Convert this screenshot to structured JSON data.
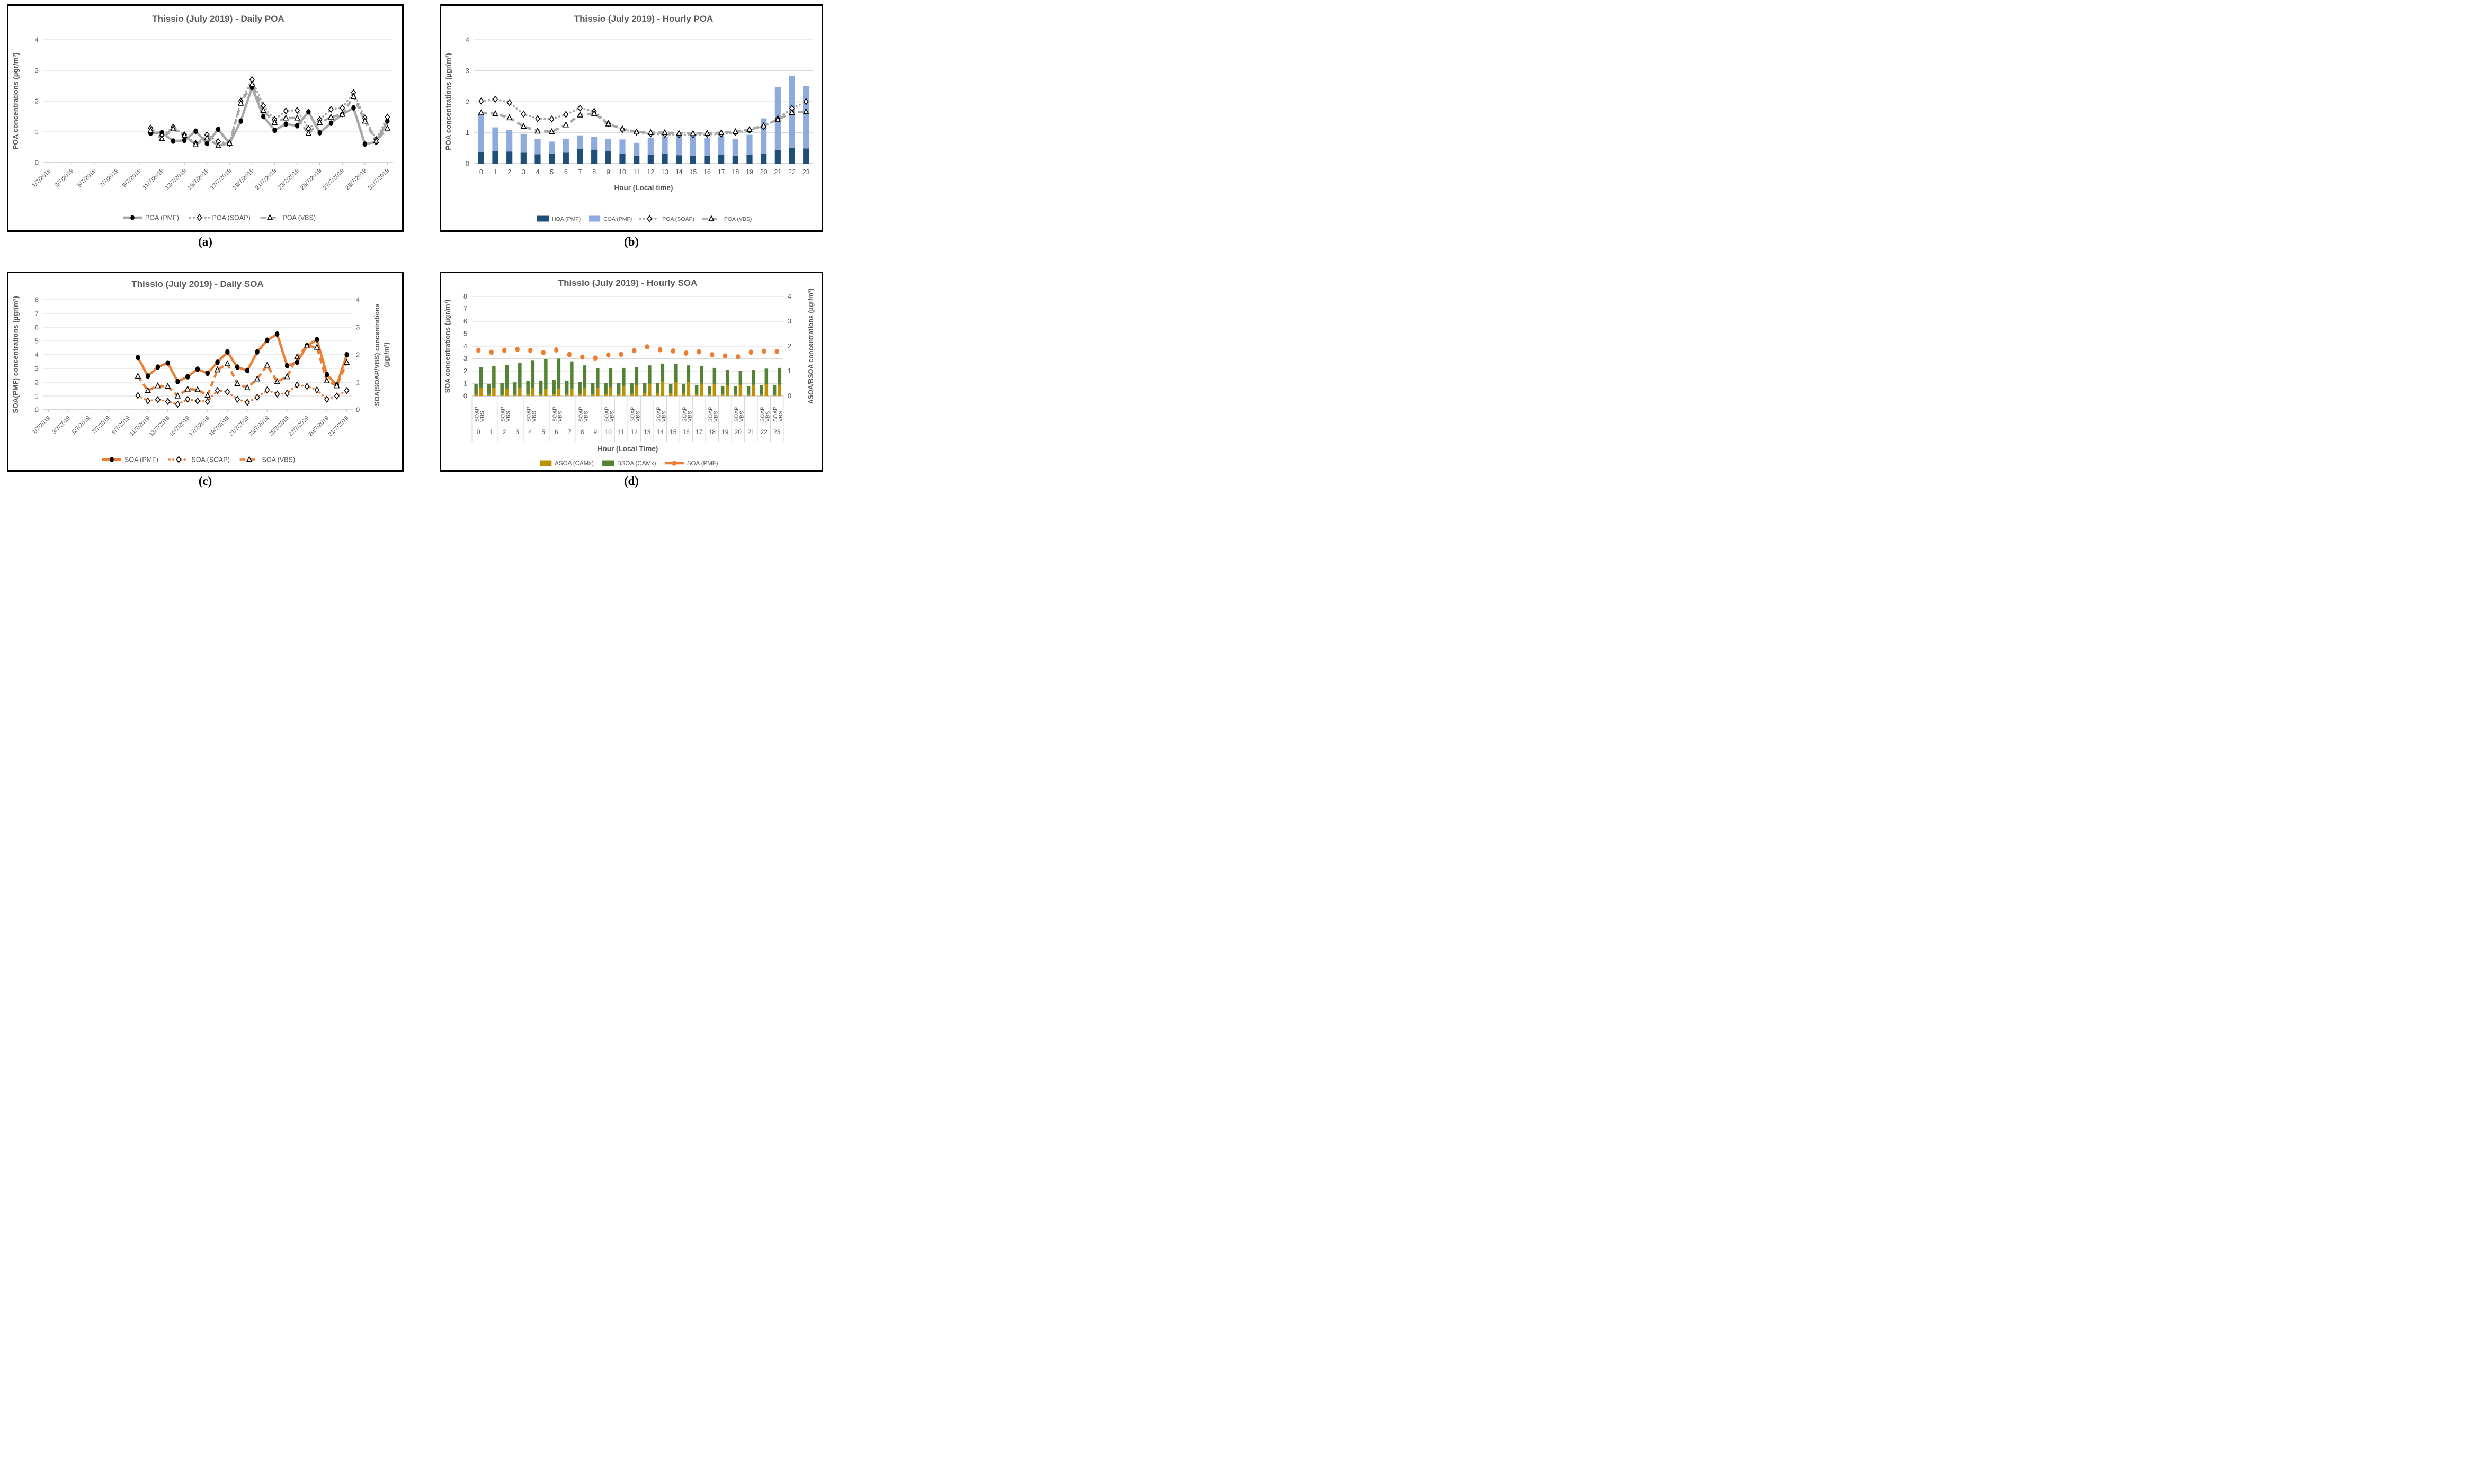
{
  "page": {
    "captions": {
      "a": "(a)",
      "b": "(b)",
      "c": "(c)",
      "d": "(d)"
    }
  },
  "colors": {
    "grid": "#d9d9d9",
    "axis": "#bfbfbf",
    "text": "#595959",
    "title": "#595959",
    "gray": "#a6a6a6",
    "black": "#000000",
    "white": "#ffffff",
    "hoa": "#1f4e79",
    "coa": "#8faadc",
    "orange": "#ed7d31",
    "asoa": "#bf9000",
    "bsoa": "#548235"
  },
  "chart_data": [
    {
      "id": "daily_poa",
      "type": "line",
      "title": "Thissio (July 2019) - Daily POA",
      "ylabel_left": "POA concentrations (µgr/m³)",
      "ylim_left": [
        0,
        4
      ],
      "yticks_left": [
        0,
        1,
        2,
        3,
        4
      ],
      "xtick_days": [
        1,
        3,
        5,
        7,
        9,
        11,
        13,
        15,
        17,
        19,
        21,
        23,
        25,
        27,
        29,
        31
      ],
      "xtick_labels": [
        "1/7/2019",
        "3/7/2019",
        "5/7/2019",
        "7/7/2019",
        "9/7/2019",
        "11/7/2019",
        "13/7/2019",
        "15/7/2019",
        "17/7/2019",
        "19/7/2019",
        "21/7/2019",
        "23/7/2019",
        "25/7/2019",
        "27/7/2019",
        "29/7/2019",
        "31/7/2019"
      ],
      "days": [
        10,
        11,
        12,
        13,
        14,
        15,
        16,
        17,
        18,
        19,
        20,
        21,
        22,
        23,
        24,
        25,
        26,
        27,
        28,
        29,
        30,
        31
      ],
      "series": [
        {
          "name": "POA (PMF)",
          "axis": "left",
          "line": "solid",
          "marker": "circle",
          "color": "#a6a6a6",
          "values": [
            0.95,
            0.98,
            0.7,
            0.72,
            1.02,
            0.62,
            1.08,
            0.63,
            1.35,
            2.45,
            1.5,
            1.05,
            1.25,
            1.2,
            1.65,
            0.97,
            1.28,
            1.57,
            1.78,
            0.6,
            0.67,
            1.35
          ]
        },
        {
          "name": "POA (SOAP)",
          "axis": "left",
          "line": "dotted",
          "marker": "diamond",
          "color": "#a6a6a6",
          "values": [
            1.12,
            0.88,
            1.15,
            0.9,
            0.62,
            0.9,
            0.68,
            0.62,
            2.0,
            2.7,
            1.85,
            1.4,
            1.68,
            1.7,
            1.1,
            1.4,
            1.73,
            1.78,
            2.28,
            1.45,
            0.75,
            1.48
          ]
        },
        {
          "name": "POA (VBS)",
          "axis": "left",
          "line": "dashed",
          "marker": "triangle",
          "color": "#a6a6a6",
          "values": [
            1.05,
            0.78,
            1.1,
            0.88,
            0.58,
            0.8,
            0.55,
            0.63,
            1.93,
            2.55,
            1.7,
            1.3,
            1.45,
            1.45,
            0.95,
            1.3,
            1.48,
            1.57,
            2.15,
            1.35,
            0.7,
            1.12
          ]
        }
      ]
    },
    {
      "id": "hourly_poa",
      "type": "bar+line",
      "title": "Thissio (July 2019) - Hourly POA",
      "xlabel": "Hour (Local time)",
      "ylabel_left": "POA concentrations (µgr/m³)",
      "ylim_left": [
        0,
        4
      ],
      "yticks_left": [
        0,
        1,
        2,
        3,
        4
      ],
      "hours": [
        0,
        1,
        2,
        3,
        4,
        5,
        6,
        7,
        8,
        9,
        10,
        11,
        12,
        13,
        14,
        15,
        16,
        17,
        18,
        19,
        20,
        21,
        22,
        23
      ],
      "bars": [
        {
          "name": "HOA (PMF)",
          "color": "#1f4e79",
          "values": [
            0.36,
            0.4,
            0.39,
            0.35,
            0.3,
            0.32,
            0.35,
            0.47,
            0.45,
            0.4,
            0.31,
            0.26,
            0.29,
            0.32,
            0.27,
            0.26,
            0.26,
            0.28,
            0.26,
            0.28,
            0.31,
            0.43,
            0.5,
            0.49
          ]
        },
        {
          "name": "COA (PMF)",
          "color": "#8faadc",
          "values": [
            1.29,
            0.77,
            0.69,
            0.61,
            0.5,
            0.39,
            0.44,
            0.44,
            0.42,
            0.39,
            0.47,
            0.41,
            0.55,
            0.55,
            0.65,
            0.64,
            0.56,
            0.6,
            0.53,
            0.65,
            1.15,
            2.05,
            2.33,
            2.02
          ]
        }
      ],
      "lines": [
        {
          "name": "POA (SOAP)",
          "line": "dotted",
          "marker": "diamond",
          "color": "#a6a6a6",
          "values": [
            2.02,
            2.08,
            1.97,
            1.6,
            1.45,
            1.44,
            1.59,
            1.79,
            1.69,
            1.29,
            1.1,
            1.01,
            0.96,
            0.94,
            0.93,
            0.93,
            0.94,
            0.95,
            1.0,
            1.08,
            1.2,
            1.45,
            1.78,
            2.0
          ]
        },
        {
          "name": "POA (VBS)",
          "line": "dashed",
          "marker": "triangle",
          "color": "#a6a6a6",
          "values": [
            1.64,
            1.61,
            1.48,
            1.2,
            1.05,
            1.03,
            1.25,
            1.57,
            1.62,
            1.28,
            1.12,
            1.02,
            1.0,
            1.0,
            0.98,
            0.97,
            0.98,
            1.0,
            1.03,
            1.1,
            1.22,
            1.42,
            1.65,
            1.68
          ]
        }
      ]
    },
    {
      "id": "daily_soa",
      "type": "line-dual-axis",
      "title": "Thissio (July 2019) - Daily SOA",
      "ylabel_left": "SOA(PMF) concentrations (µgr/m³)",
      "ylabel_right_line1": "SOA(SOAP/VBS) concentrations",
      "ylabel_right_line2": "(µgr/m³)",
      "ylim_left": [
        0,
        8
      ],
      "yticks_left": [
        0,
        1,
        2,
        3,
        4,
        5,
        6,
        7,
        8
      ],
      "ylim_right": [
        0,
        4
      ],
      "yticks_right": [
        0,
        1,
        2,
        3,
        4
      ],
      "xtick_days": [
        1,
        3,
        5,
        7,
        9,
        11,
        13,
        15,
        17,
        19,
        21,
        23,
        25,
        27,
        29,
        31
      ],
      "xtick_labels": [
        "1/7/2019",
        "3/7/2019",
        "5/7/2019",
        "7/7/2019",
        "9/7/2019",
        "11/7/2019",
        "13/7/2019",
        "15/7/2019",
        "17/7/2019",
        "19/7/2019",
        "21/7/2019",
        "23/7/2019",
        "25/7/2019",
        "27/7/2019",
        "29/7/2019",
        "31/7/2019"
      ],
      "days": [
        10,
        11,
        12,
        13,
        14,
        15,
        16,
        17,
        18,
        19,
        20,
        21,
        22,
        23,
        24,
        25,
        26,
        27,
        28,
        29,
        30,
        31
      ],
      "series": [
        {
          "name": "SOA (PMF)",
          "axis": "left",
          "line": "solid",
          "marker": "circle",
          "color": "#ed7d31",
          "values": [
            3.8,
            2.45,
            3.1,
            3.4,
            2.05,
            2.4,
            2.95,
            2.65,
            3.45,
            4.2,
            3.1,
            2.85,
            4.2,
            5.05,
            5.5,
            3.2,
            3.45,
            4.65,
            5.1,
            2.55,
            1.8,
            4.0
          ]
        },
        {
          "name": "SOA (SOAP)",
          "axis": "right",
          "line": "dotted",
          "marker": "diamond",
          "color": "#ed7d31",
          "values": [
            0.52,
            0.32,
            0.37,
            0.3,
            0.2,
            0.38,
            0.32,
            0.3,
            0.7,
            0.65,
            0.38,
            0.27,
            0.45,
            0.72,
            0.57,
            0.6,
            0.9,
            0.85,
            0.72,
            0.38,
            0.5,
            0.7
          ]
        },
        {
          "name": "SOA (VBS)",
          "axis": "right",
          "line": "dashed",
          "marker": "triangle",
          "color": "#ed7d31",
          "values": [
            1.22,
            0.7,
            0.87,
            0.85,
            0.5,
            0.75,
            0.73,
            0.52,
            1.45,
            1.67,
            0.95,
            0.8,
            1.12,
            1.62,
            1.02,
            1.2,
            1.92,
            2.32,
            2.27,
            1.05,
            0.87,
            1.72
          ]
        }
      ]
    },
    {
      "id": "hourly_soa",
      "type": "bar+scatter-dual-axis",
      "title": "Thissio (July 2019) - Hourly SOA",
      "xlabel": "Hour (Local Time)",
      "ylabel_left": "SOA concentrations (µgr/m³)",
      "ylabel_right": "ASOA/BSOA concentrations (µgr/m³)",
      "ylim_left": [
        0,
        8
      ],
      "yticks_left": [
        0,
        1,
        2,
        3,
        4,
        5,
        6,
        7,
        8
      ],
      "ylim_right": [
        0,
        4
      ],
      "yticks_right": [
        0,
        1,
        2,
        3,
        4
      ],
      "hours": [
        0,
        1,
        2,
        3,
        4,
        5,
        6,
        7,
        8,
        9,
        10,
        11,
        12,
        13,
        14,
        15,
        16,
        17,
        18,
        19,
        20,
        21,
        22,
        23
      ],
      "group_labels": [
        "SOAP",
        "VBS"
      ],
      "group_label_hours": [
        0,
        2,
        4,
        6,
        8,
        10,
        12,
        14,
        16,
        18,
        20,
        22,
        23
      ],
      "asoa_color": "#bf9000",
      "bsoa_color": "#548235",
      "bars_right_axis": {
        "soap_asoa": [
          0.05,
          0.05,
          0.05,
          0.05,
          0.06,
          0.06,
          0.06,
          0.06,
          0.06,
          0.07,
          0.08,
          0.08,
          0.09,
          0.11,
          0.12,
          0.11,
          0.1,
          0.08,
          0.06,
          0.06,
          0.05,
          0.05,
          0.05,
          0.05
        ],
        "soap_bsoa": [
          0.42,
          0.44,
          0.47,
          0.5,
          0.54,
          0.56,
          0.58,
          0.56,
          0.51,
          0.46,
          0.45,
          0.44,
          0.43,
          0.41,
          0.4,
          0.38,
          0.37,
          0.36,
          0.34,
          0.34,
          0.35,
          0.35,
          0.38,
          0.4
        ],
        "vbs_asoa": [
          0.33,
          0.33,
          0.3,
          0.31,
          0.31,
          0.29,
          0.3,
          0.3,
          0.31,
          0.33,
          0.35,
          0.38,
          0.44,
          0.5,
          0.58,
          0.57,
          0.55,
          0.5,
          0.48,
          0.43,
          0.45,
          0.45,
          0.48,
          0.45
        ],
        "vbs_bsoa": [
          0.83,
          0.86,
          0.95,
          1.02,
          1.13,
          1.19,
          1.2,
          1.09,
          0.92,
          0.78,
          0.76,
          0.75,
          0.71,
          0.73,
          0.72,
          0.71,
          0.68,
          0.7,
          0.65,
          0.62,
          0.55,
          0.59,
          0.62,
          0.68
        ]
      },
      "scatter": {
        "name": "SOA (PMF)",
        "color": "#ed7d31",
        "values_left_axis": [
          3.68,
          3.52,
          3.67,
          3.75,
          3.67,
          3.5,
          3.7,
          3.33,
          3.13,
          3.05,
          3.3,
          3.35,
          3.65,
          3.95,
          3.72,
          3.62,
          3.45,
          3.55,
          3.32,
          3.22,
          3.15,
          3.52,
          3.6,
          3.58
        ]
      },
      "legend": [
        "ASOA (CAMx)",
        "BSOA (CAMx)",
        "SOA (PMF)"
      ]
    }
  ]
}
